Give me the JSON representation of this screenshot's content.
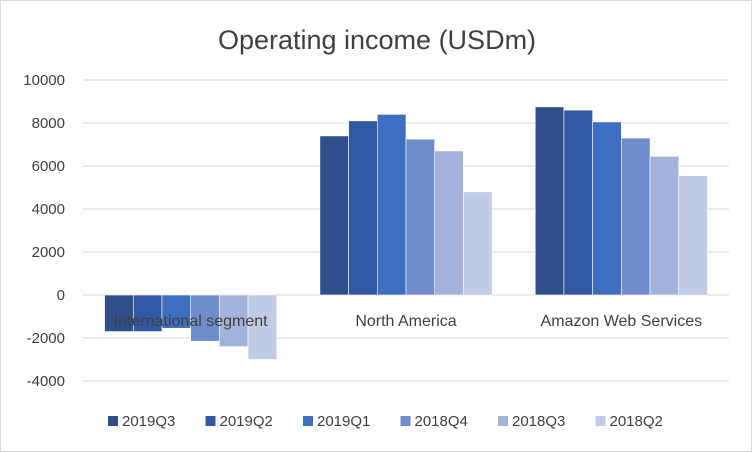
{
  "chart_data": {
    "type": "bar",
    "title": "Operating income (USDm)",
    "xlabel": "",
    "ylabel": "",
    "categories": [
      "International segment",
      "North America",
      "Amazon Web Services"
    ],
    "ylim": [
      -4000,
      10000
    ],
    "yticks": [
      -4000,
      -2000,
      0,
      2000,
      4000,
      6000,
      8000,
      10000
    ],
    "grid": true,
    "legend_position": "bottom",
    "series": [
      {
        "name": "2019Q3",
        "color": "#2f4f8a",
        "values": [
          -1700,
          7400,
          8750
        ]
      },
      {
        "name": "2019Q2",
        "color": "#3358a3",
        "values": [
          -1700,
          8100,
          8600
        ]
      },
      {
        "name": "2019Q1",
        "color": "#3e6ec0",
        "values": [
          -1550,
          8400,
          8050
        ]
      },
      {
        "name": "2018Q4",
        "color": "#6f8ccc",
        "values": [
          -2150,
          7250,
          7300
        ]
      },
      {
        "name": "2018Q3",
        "color": "#a3b2da",
        "values": [
          -2400,
          6700,
          6450
        ]
      },
      {
        "name": "2018Q2",
        "color": "#c2cbe6",
        "values": [
          -3000,
          4800,
          5550
        ]
      }
    ]
  }
}
